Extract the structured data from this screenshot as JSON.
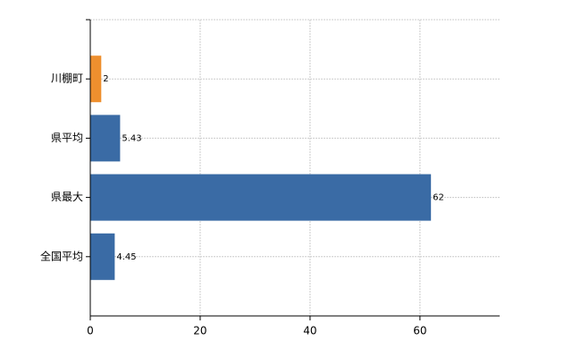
{
  "chart_data": {
    "type": "hbar",
    "categories": [
      "川棚町",
      "県平均",
      "県最大",
      "全国平均"
    ],
    "values": [
      2,
      5.43,
      62,
      4.45
    ],
    "colors": [
      "#ee8f2e",
      "#3a6ba5",
      "#3a6ba5",
      "#3a6ba5"
    ],
    "xlim": [
      0,
      74.5
    ],
    "xticks": [
      0,
      20,
      40,
      60
    ],
    "grid": true
  }
}
